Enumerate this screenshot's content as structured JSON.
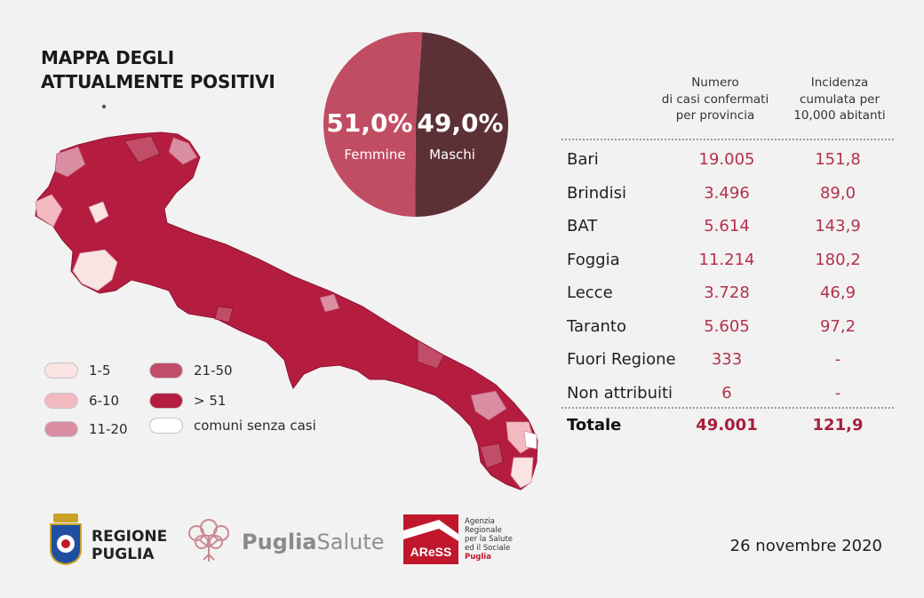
{
  "title": {
    "line1": "MAPPA DEGLI",
    "line2": "ATTUALMENTE POSITIVI"
  },
  "chart_data": [
    {
      "type": "pie",
      "title": "",
      "categories": [
        "Femmine",
        "Maschi"
      ],
      "values": [
        51.0,
        49.0
      ],
      "labels": [
        "51,0%",
        "49,0%"
      ],
      "colors": [
        "#c14d62",
        "#5c3136"
      ]
    },
    {
      "type": "table",
      "columns": [
        "Numero di casi confermati per provincia",
        "Incidenza cumulata per 10,000 abitanti"
      ],
      "header_lines": {
        "c1": [
          "Numero",
          "di casi confermati",
          "per provincia"
        ],
        "c2": [
          "Incidenza",
          "cumulata per",
          "10,000 abitanti"
        ]
      },
      "rows": [
        {
          "name": "Bari",
          "casi": "19.005",
          "incidenza": "151,8"
        },
        {
          "name": "Brindisi",
          "casi": "3.496",
          "incidenza": "89,0"
        },
        {
          "name": "BAT",
          "casi": "5.614",
          "incidenza": "143,9"
        },
        {
          "name": "Foggia",
          "casi": "11.214",
          "incidenza": "180,2"
        },
        {
          "name": "Lecce",
          "casi": "3.728",
          "incidenza": "46,9"
        },
        {
          "name": "Taranto",
          "casi": "5.605",
          "incidenza": "97,2"
        },
        {
          "name": "Fuori Regione",
          "casi": "333",
          "incidenza": "-"
        },
        {
          "name": "Non attribuiti",
          "casi": "6",
          "incidenza": "-"
        }
      ],
      "total": {
        "name": "Totale",
        "casi": "49.001",
        "incidenza": "121,9"
      }
    }
  ],
  "legend": [
    {
      "label": "1-5",
      "color": "#fae3e3"
    },
    {
      "label": "6-10",
      "color": "#f2b9c1"
    },
    {
      "label": "11-20",
      "color": "#d98ea4"
    },
    {
      "label": "21-50",
      "color": "#c14d68"
    },
    {
      "label": "> 51",
      "color": "#b41d3f"
    },
    {
      "label": "comuni senza casi",
      "color": "#ffffff"
    }
  ],
  "colors": {
    "map_main": "#b41d3f",
    "value_text": "#b3314c"
  },
  "footer": {
    "regione_line1": "REGIONE",
    "regione_line2": "PUGLIA",
    "puglia_a": "Puglia",
    "puglia_b": "Salute",
    "ares_mark": "AReSS",
    "ares_lines": [
      "Agenzia",
      "Regionale",
      "per la Salute",
      "ed il Sociale"
    ],
    "ares_region": "Puglia",
    "date": "26 novembre 2020"
  }
}
